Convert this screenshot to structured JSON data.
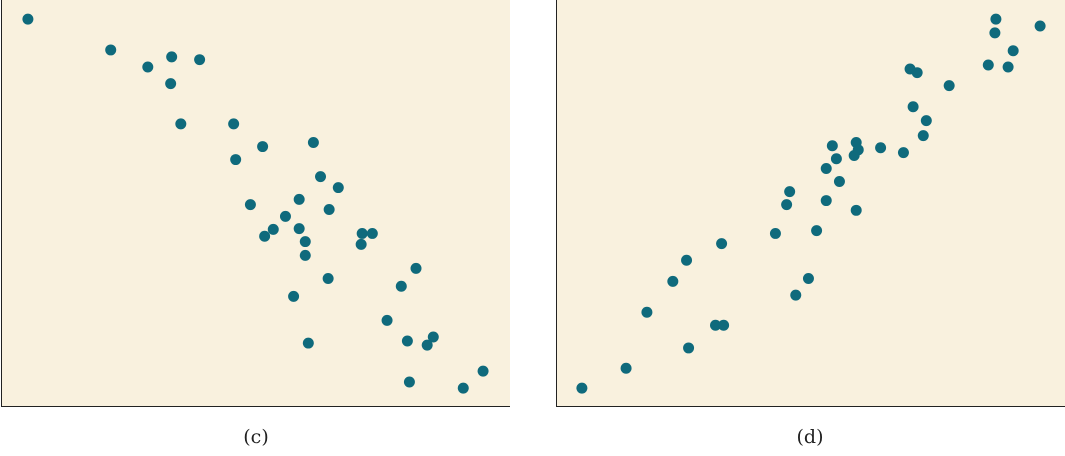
{
  "colors": {
    "background": "#f9f1de",
    "point": "#0f6a7c",
    "axis": "#222222"
  },
  "chart_data": [
    {
      "type": "scatter",
      "label": "(c)",
      "xlim": [
        0,
        100
      ],
      "ylim": [
        0,
        100
      ],
      "grid": false,
      "points": [
        [
          5.1,
          95.3
        ],
        [
          21.4,
          87.7
        ],
        [
          28.7,
          83.5
        ],
        [
          33.4,
          86.0
        ],
        [
          38.9,
          85.3
        ],
        [
          33.2,
          79.4
        ],
        [
          35.2,
          69.5
        ],
        [
          45.6,
          69.5
        ],
        [
          46.0,
          60.7
        ],
        [
          51.3,
          63.9
        ],
        [
          61.3,
          64.9
        ],
        [
          62.7,
          56.5
        ],
        [
          66.2,
          53.8
        ],
        [
          48.9,
          49.6
        ],
        [
          58.5,
          50.9
        ],
        [
          64.4,
          48.4
        ],
        [
          55.8,
          46.7
        ],
        [
          53.4,
          43.5
        ],
        [
          58.5,
          43.7
        ],
        [
          51.7,
          41.8
        ],
        [
          59.7,
          40.5
        ],
        [
          70.9,
          42.5
        ],
        [
          72.9,
          42.5
        ],
        [
          70.7,
          39.8
        ],
        [
          59.7,
          37.1
        ],
        [
          81.5,
          33.9
        ],
        [
          64.2,
          31.4
        ],
        [
          78.6,
          29.5
        ],
        [
          57.4,
          27.0
        ],
        [
          75.8,
          21.1
        ],
        [
          84.9,
          17.0
        ],
        [
          79.8,
          16.0
        ],
        [
          83.7,
          15.0
        ],
        [
          60.3,
          15.5
        ],
        [
          80.2,
          5.9
        ],
        [
          90.8,
          4.4
        ],
        [
          94.7,
          8.6
        ]
      ]
    },
    {
      "type": "scatter",
      "label": "(d)",
      "xlim": [
        0,
        100
      ],
      "ylim": [
        0,
        100
      ],
      "grid": false,
      "points": [
        [
          4.9,
          4.4
        ],
        [
          13.6,
          9.3
        ],
        [
          25.9,
          14.3
        ],
        [
          17.7,
          23.1
        ],
        [
          31.2,
          19.9
        ],
        [
          32.8,
          19.9
        ],
        [
          22.8,
          30.7
        ],
        [
          25.5,
          35.9
        ],
        [
          32.4,
          40.0
        ],
        [
          43.0,
          42.5
        ],
        [
          45.2,
          49.6
        ],
        [
          45.8,
          52.8
        ],
        [
          47.0,
          27.3
        ],
        [
          49.5,
          31.4
        ],
        [
          51.1,
          43.2
        ],
        [
          53.0,
          50.6
        ],
        [
          53.0,
          58.5
        ],
        [
          54.2,
          64.1
        ],
        [
          55.0,
          60.9
        ],
        [
          55.6,
          55.3
        ],
        [
          58.9,
          48.2
        ],
        [
          58.5,
          61.7
        ],
        [
          58.9,
          64.9
        ],
        [
          59.3,
          63.1
        ],
        [
          63.7,
          63.6
        ],
        [
          68.2,
          62.4
        ],
        [
          70.1,
          73.7
        ],
        [
          72.7,
          70.3
        ],
        [
          72.1,
          66.6
        ],
        [
          69.5,
          83.0
        ],
        [
          70.9,
          82.1
        ],
        [
          77.2,
          78.9
        ],
        [
          84.9,
          84.0
        ],
        [
          88.8,
          83.5
        ],
        [
          89.8,
          87.5
        ],
        [
          86.2,
          91.9
        ],
        [
          86.4,
          95.3
        ],
        [
          95.1,
          93.6
        ]
      ]
    }
  ]
}
